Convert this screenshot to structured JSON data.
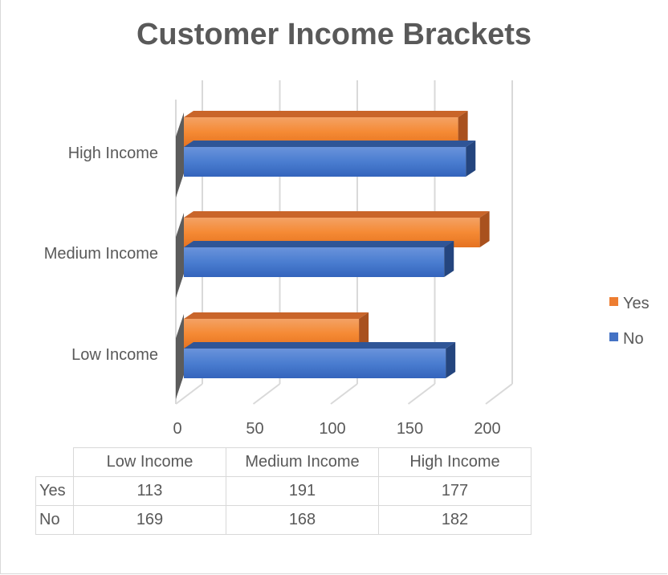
{
  "chart_data": {
    "type": "bar",
    "orientation": "horizontal",
    "style": "3d-clustered",
    "title": "Customer Income Brackets",
    "categories": [
      "Low Income",
      "Medium Income",
      "High Income"
    ],
    "series": [
      {
        "name": "Yes",
        "values": [
          113,
          191,
          177
        ],
        "color": "#ED7D31"
      },
      {
        "name": "No",
        "values": [
          169,
          168,
          182
        ],
        "color": "#4472C4"
      }
    ],
    "xlim": [
      0,
      200
    ],
    "xticks": [
      "0",
      "50",
      "100",
      "150",
      "200"
    ],
    "grid": true,
    "legend": "right",
    "data_table": true
  }
}
